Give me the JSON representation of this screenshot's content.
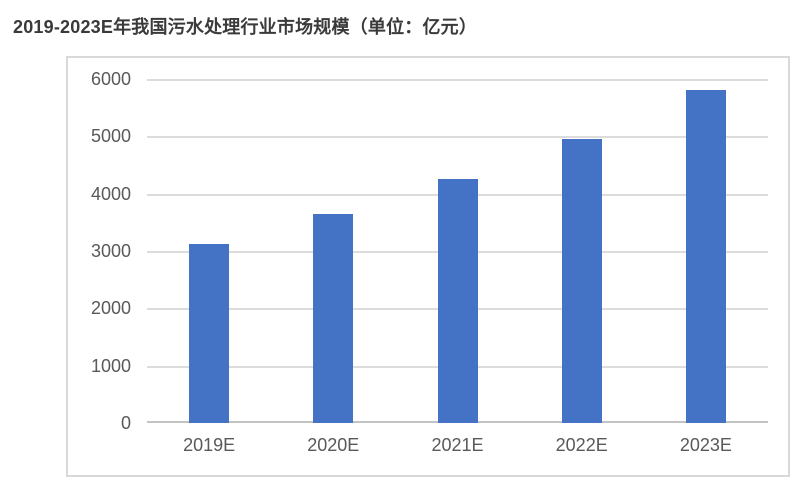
{
  "page": {
    "title": "2019-2023E年我国污水处理行业市场规模（单位：亿元）"
  },
  "colors": {
    "bar": "#4472c4",
    "gridline": "#dcdcdc",
    "axis_line": "#c3c3c3",
    "tick_text": "#595959",
    "title_text": "#3a3a3a",
    "frame_border": "#d9d9d9",
    "background": "#ffffff"
  },
  "chart_data": {
    "type": "bar",
    "title": "2019-2023E年我国污水处理行业市场规模（单位：亿元）",
    "unit_label": "亿元",
    "categories": [
      "2019E",
      "2020E",
      "2021E",
      "2022E",
      "2023E"
    ],
    "values": [
      3130,
      3650,
      4250,
      4950,
      5800
    ],
    "xlabel": "",
    "ylabel": "",
    "ylim": [
      0,
      6000
    ],
    "yticks": [
      0,
      1000,
      2000,
      3000,
      4000,
      5000,
      6000
    ],
    "grid": true,
    "legend_position": "none"
  }
}
